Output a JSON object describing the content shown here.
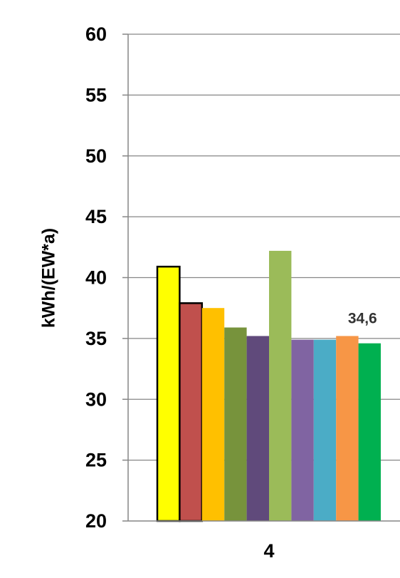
{
  "chart_data": {
    "type": "bar",
    "title": "",
    "xlabel": "",
    "ylabel": "kWh/(EW*a)",
    "categories": [
      "4"
    ],
    "ylim": [
      20,
      60
    ],
    "yticks": [
      20,
      25,
      30,
      35,
      40,
      45,
      50,
      55,
      60
    ],
    "grid": true,
    "legend": "none",
    "series": [
      {
        "values": [
          40.9
        ],
        "color": "#ffff00",
        "outlined": true
      },
      {
        "values": [
          37.9
        ],
        "color": "#c0504d",
        "outlined": true
      },
      {
        "values": [
          37.5
        ],
        "color": "#ffc000",
        "outlined": false
      },
      {
        "values": [
          35.9
        ],
        "color": "#77933c",
        "outlined": false
      },
      {
        "values": [
          35.2
        ],
        "color": "#604a7b",
        "outlined": false
      },
      {
        "values": [
          42.2
        ],
        "color": "#9bbb59",
        "outlined": false
      },
      {
        "values": [
          34.9
        ],
        "color": "#8064a2",
        "outlined": false
      },
      {
        "values": [
          34.9
        ],
        "color": "#4bacc6",
        "outlined": false
      },
      {
        "values": [
          35.2
        ],
        "color": "#f79646",
        "outlined": false
      },
      {
        "values": [
          34.6
        ],
        "color": "#00b050",
        "outlined": false
      }
    ],
    "data_labels": [
      {
        "series_index": 9,
        "text": "34,6"
      }
    ]
  }
}
